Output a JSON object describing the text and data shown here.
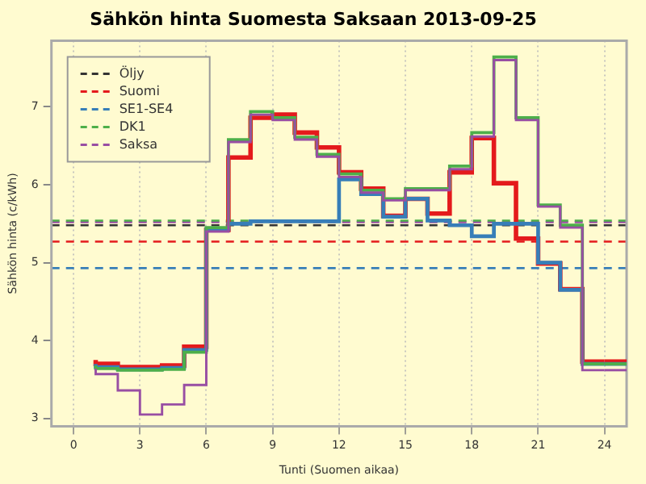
{
  "chart_data": {
    "type": "step",
    "title": "Sähkön hinta Suomesta Saksaan 2013-09-25",
    "xlabel": "Tunti (Suomen aikaa)",
    "ylabel": "Sähkön hinta (c/kWh)",
    "x": [
      1,
      2,
      3,
      4,
      5,
      6,
      7,
      8,
      9,
      10,
      11,
      12,
      13,
      14,
      15,
      16,
      17,
      18,
      19,
      20,
      21,
      22,
      23,
      24
    ],
    "series": [
      {
        "name": "Suomi",
        "color": "#e41a1c",
        "values": [
          3.75,
          3.7,
          3.66,
          3.66,
          3.68,
          3.92,
          5.42,
          6.35,
          6.86,
          6.9,
          6.67,
          6.48,
          6.16,
          5.95,
          5.6,
          5.82,
          5.63,
          6.16,
          6.6,
          6.02,
          5.31,
          4.99,
          4.66,
          3.73
        ]
      },
      {
        "name": "SE1-SE4",
        "color": "#377eb8",
        "values": [
          3.7,
          3.66,
          3.63,
          3.63,
          3.65,
          3.88,
          5.43,
          5.5,
          5.53,
          5.53,
          5.53,
          5.53,
          6.07,
          5.88,
          5.59,
          5.82,
          5.54,
          5.48,
          5.34,
          5.5,
          5.5,
          5.0,
          4.65,
          3.7
        ]
      },
      {
        "name": "DK1",
        "color": "#4daf4a",
        "values": [
          3.68,
          3.64,
          3.62,
          3.62,
          3.63,
          3.85,
          5.45,
          6.58,
          6.94,
          6.86,
          6.61,
          6.39,
          6.14,
          5.93,
          5.82,
          5.95,
          5.95,
          6.24,
          6.67,
          7.64,
          6.86,
          5.74,
          5.48,
          3.7
        ]
      },
      {
        "name": "Saksa",
        "color": "#984ea3",
        "values": [
          3.64,
          3.57,
          3.36,
          3.05,
          3.18,
          3.43,
          5.4,
          6.55,
          6.9,
          6.83,
          6.58,
          6.36,
          6.1,
          5.9,
          5.8,
          5.93,
          5.93,
          6.2,
          6.62,
          7.6,
          6.83,
          5.72,
          5.45,
          3.62
        ]
      }
    ],
    "ref_lines": [
      {
        "axis": "y",
        "value": 5.48,
        "label": "Öljy",
        "color": "#333333",
        "line_style": "dashed"
      },
      {
        "axis": "y",
        "value": 5.27,
        "label": null,
        "color": "#e41a1c",
        "line_style": "dashed"
      },
      {
        "axis": "y",
        "value": 4.93,
        "label": null,
        "color": "#377eb8",
        "line_style": "dashed"
      },
      {
        "axis": "y",
        "value": 5.52,
        "label": null,
        "color": "#984ea3",
        "line_style": "dashed"
      },
      {
        "axis": "y",
        "value": 5.54,
        "label": null,
        "color": "#4daf4a",
        "line_style": "dashed"
      }
    ],
    "xlim": [
      -1,
      25
    ],
    "xticks": [
      0,
      3,
      6,
      9,
      12,
      15,
      18,
      21,
      24
    ],
    "ylim": [
      2.9,
      7.85
    ],
    "yticks": [
      3,
      4,
      5,
      6,
      7
    ],
    "grid": "x",
    "legend": "top left",
    "line_style": "solid",
    "marker": "none"
  }
}
